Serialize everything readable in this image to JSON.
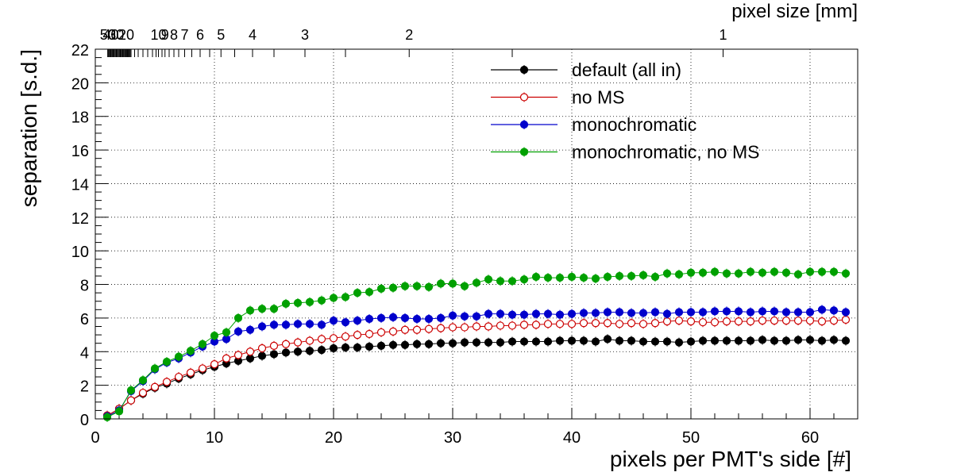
{
  "chart_data": {
    "type": "scatter",
    "xlabel": "pixels per PMT's side [#]",
    "ylabel": "separation [s.d.]",
    "top_axis_label": "pixel size [mm]",
    "top_axis_ticks": [
      {
        "label": "1",
        "at_x": 52.7
      },
      {
        "label": "2",
        "at_x": 26.35
      },
      {
        "label": "3",
        "at_x": 17.6
      },
      {
        "label": "4",
        "at_x": 13.2
      },
      {
        "label": "5",
        "at_x": 10.55
      },
      {
        "label": "6",
        "at_x": 8.8
      },
      {
        "label": "7",
        "at_x": 7.5
      },
      {
        "label": "8",
        "at_x": 6.6
      },
      {
        "label": "9",
        "at_x": 5.85
      },
      {
        "label": "10",
        "at_x": 5.3
      },
      {
        "label": "20",
        "at_x": 2.6
      },
      {
        "label": "30",
        "at_x": 1.75
      },
      {
        "label": "40",
        "at_x": 1.3
      },
      {
        "label": "50",
        "at_x": 1.05
      }
    ],
    "xlim": [
      0,
      64
    ],
    "ylim": [
      0,
      22
    ],
    "xticks": [
      0,
      10,
      20,
      30,
      40,
      50,
      60
    ],
    "yticks": [
      0,
      2,
      4,
      6,
      8,
      10,
      12,
      14,
      16,
      18,
      20,
      22
    ],
    "grid": true,
    "legend_position": "top-right",
    "x": [
      1,
      2,
      3,
      4,
      5,
      6,
      7,
      8,
      9,
      10,
      11,
      12,
      13,
      14,
      15,
      16,
      17,
      18,
      19,
      20,
      21,
      22,
      23,
      24,
      25,
      26,
      27,
      28,
      29,
      30,
      31,
      32,
      33,
      34,
      35,
      36,
      37,
      38,
      39,
      40,
      41,
      42,
      43,
      44,
      45,
      46,
      47,
      48,
      49,
      50,
      51,
      52,
      53,
      54,
      55,
      56,
      57,
      58,
      59,
      60,
      61,
      62,
      63
    ],
    "series": [
      {
        "name": "default (all in)",
        "color": "#000000",
        "marker": "filled-circle",
        "values": [
          0.2,
          0.6,
          1.1,
          1.5,
          1.85,
          2.1,
          2.4,
          2.65,
          2.9,
          3.1,
          3.3,
          3.45,
          3.6,
          3.75,
          3.85,
          3.95,
          4.0,
          4.05,
          4.1,
          4.2,
          4.25,
          4.25,
          4.3,
          4.35,
          4.4,
          4.4,
          4.45,
          4.45,
          4.5,
          4.5,
          4.55,
          4.55,
          4.55,
          4.55,
          4.6,
          4.6,
          4.6,
          4.6,
          4.65,
          4.65,
          4.65,
          4.6,
          4.75,
          4.65,
          4.65,
          4.6,
          4.6,
          4.6,
          4.55,
          4.6,
          4.65,
          4.65,
          4.65,
          4.65,
          4.65,
          4.7,
          4.65,
          4.65,
          4.7,
          4.7,
          4.65,
          4.7,
          4.65
        ]
      },
      {
        "name": "no MS",
        "color": "#cc0000",
        "marker": "open-circle",
        "values": [
          0.2,
          0.6,
          1.1,
          1.55,
          1.9,
          2.2,
          2.5,
          2.75,
          3.0,
          3.25,
          3.6,
          3.8,
          4.0,
          4.2,
          4.35,
          4.45,
          4.55,
          4.65,
          4.75,
          4.8,
          4.9,
          5.0,
          5.05,
          5.15,
          5.2,
          5.3,
          5.3,
          5.35,
          5.4,
          5.45,
          5.45,
          5.5,
          5.5,
          5.55,
          5.55,
          5.6,
          5.6,
          5.65,
          5.65,
          5.65,
          5.7,
          5.7,
          5.7,
          5.65,
          5.7,
          5.65,
          5.7,
          5.8,
          5.85,
          5.8,
          5.75,
          5.75,
          5.8,
          5.8,
          5.8,
          5.85,
          5.85,
          5.85,
          5.85,
          5.85,
          5.8,
          5.85,
          5.9
        ]
      },
      {
        "name": "monochromatic",
        "color": "#0000cc",
        "marker": "filled-circle",
        "values": [
          0.15,
          0.5,
          1.65,
          2.25,
          2.95,
          3.35,
          3.6,
          3.95,
          4.3,
          4.6,
          4.75,
          5.2,
          5.3,
          5.5,
          5.6,
          5.6,
          5.65,
          5.65,
          5.6,
          5.85,
          5.75,
          5.85,
          5.95,
          6.0,
          6.05,
          6.0,
          5.95,
          5.95,
          6.0,
          6.15,
          6.1,
          6.1,
          6.25,
          6.25,
          6.2,
          6.2,
          6.25,
          6.25,
          6.2,
          6.25,
          6.3,
          6.3,
          6.35,
          6.35,
          6.3,
          6.3,
          6.35,
          6.25,
          6.35,
          6.35,
          6.35,
          6.4,
          6.4,
          6.4,
          6.35,
          6.4,
          6.4,
          6.35,
          6.35,
          6.35,
          6.5,
          6.45,
          6.35
        ]
      },
      {
        "name": "monochromatic, no MS",
        "color": "#00a000",
        "marker": "filled-circle",
        "values": [
          0.1,
          0.45,
          1.7,
          2.3,
          3.0,
          3.4,
          3.7,
          4.05,
          4.45,
          4.95,
          5.15,
          6.0,
          6.45,
          6.55,
          6.55,
          6.85,
          6.9,
          6.95,
          7.05,
          7.2,
          7.25,
          7.5,
          7.55,
          7.75,
          7.8,
          7.9,
          7.9,
          7.85,
          8.05,
          8.05,
          7.9,
          8.1,
          8.3,
          8.2,
          8.2,
          8.3,
          8.45,
          8.4,
          8.4,
          8.45,
          8.4,
          8.35,
          8.45,
          8.5,
          8.5,
          8.55,
          8.45,
          8.65,
          8.6,
          8.7,
          8.7,
          8.75,
          8.65,
          8.65,
          8.75,
          8.7,
          8.75,
          8.7,
          8.6,
          8.75,
          8.75,
          8.75,
          8.65
        ]
      }
    ]
  }
}
